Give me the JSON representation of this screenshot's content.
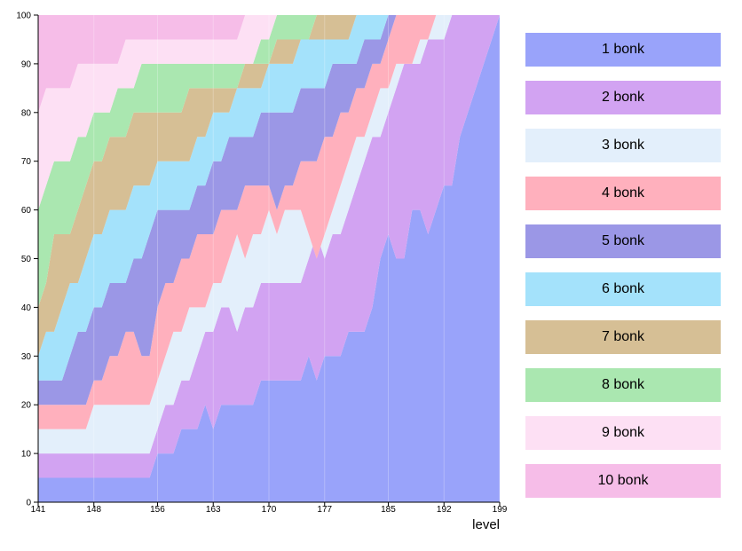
{
  "chart_data": {
    "type": "area",
    "stacking": "percent",
    "xlabel": "level",
    "ylabel": "",
    "ylim": [
      0,
      100
    ],
    "xlim": [
      141,
      199
    ],
    "x_ticks": [
      141,
      148,
      156,
      163,
      170,
      177,
      185,
      192,
      199
    ],
    "y_ticks": [
      0,
      10,
      20,
      30,
      40,
      50,
      60,
      70,
      80,
      90,
      100
    ],
    "x": [
      141,
      142,
      143,
      144,
      145,
      146,
      147,
      148,
      149,
      150,
      151,
      152,
      153,
      154,
      155,
      156,
      157,
      158,
      159,
      160,
      161,
      162,
      163,
      164,
      165,
      166,
      167,
      168,
      169,
      170,
      171,
      172,
      173,
      174,
      175,
      176,
      177,
      178,
      179,
      180,
      181,
      182,
      183,
      184,
      185,
      186,
      187,
      188,
      189,
      190,
      191,
      192,
      193,
      194,
      195,
      196,
      197,
      198,
      199
    ],
    "cumulative_boundaries": [
      {
        "upper_of": "1 bonk",
        "values": [
          5,
          5,
          5,
          5,
          5,
          5,
          5,
          5,
          5,
          5,
          5,
          5,
          5,
          5,
          5,
          10,
          10,
          10,
          15,
          15,
          15,
          20,
          15,
          20,
          20,
          20,
          20,
          20,
          25,
          25,
          25,
          25,
          25,
          25,
          30,
          25,
          30,
          30,
          30,
          35,
          35,
          35,
          40,
          50,
          55,
          50,
          50,
          60,
          60,
          55,
          60,
          65,
          65,
          75,
          80,
          85,
          90,
          95,
          100
        ]
      },
      {
        "upper_of": "2 bonk",
        "values": [
          10,
          10,
          10,
          10,
          10,
          10,
          10,
          10,
          10,
          10,
          10,
          10,
          10,
          10,
          10,
          15,
          20,
          20,
          25,
          25,
          30,
          35,
          35,
          40,
          40,
          35,
          40,
          40,
          45,
          45,
          45,
          45,
          45,
          45,
          50,
          55,
          50,
          55,
          55,
          60,
          65,
          70,
          75,
          75,
          80,
          85,
          90,
          90,
          90,
          95,
          95,
          95,
          100,
          100,
          100,
          100,
          100,
          100,
          100
        ]
      },
      {
        "upper_of": "3 bonk",
        "values": [
          15,
          15,
          15,
          15,
          15,
          15,
          15,
          20,
          20,
          20,
          20,
          20,
          20,
          20,
          20,
          25,
          30,
          35,
          35,
          40,
          40,
          40,
          45,
          45,
          50,
          55,
          50,
          55,
          55,
          60,
          55,
          60,
          60,
          60,
          55,
          50,
          55,
          60,
          65,
          70,
          75,
          75,
          80,
          85,
          85,
          90,
          90,
          90,
          95,
          95,
          100,
          100,
          100,
          100,
          100,
          100,
          100,
          100,
          100
        ]
      },
      {
        "upper_of": "4 bonk",
        "values": [
          20,
          20,
          20,
          20,
          20,
          20,
          20,
          25,
          25,
          30,
          30,
          35,
          35,
          30,
          30,
          40,
          45,
          45,
          50,
          50,
          55,
          55,
          55,
          60,
          60,
          60,
          65,
          65,
          65,
          65,
          60,
          65,
          65,
          70,
          70,
          70,
          75,
          75,
          80,
          80,
          85,
          85,
          90,
          90,
          95,
          100,
          100,
          100,
          100,
          100,
          100,
          100,
          100,
          100,
          100,
          100,
          100,
          100,
          100
        ]
      },
      {
        "upper_of": "5 bonk",
        "values": [
          25,
          25,
          25,
          25,
          30,
          35,
          35,
          40,
          40,
          45,
          45,
          45,
          50,
          50,
          55,
          60,
          60,
          60,
          60,
          60,
          65,
          65,
          70,
          70,
          75,
          75,
          75,
          75,
          80,
          80,
          80,
          80,
          80,
          85,
          85,
          85,
          85,
          90,
          90,
          90,
          90,
          95,
          95,
          95,
          100,
          100,
          100,
          100,
          100,
          100,
          100,
          100,
          100,
          100,
          100,
          100,
          100,
          100,
          100
        ]
      },
      {
        "upper_of": "6 bonk",
        "values": [
          30,
          35,
          35,
          40,
          45,
          45,
          50,
          55,
          55,
          60,
          60,
          60,
          65,
          65,
          65,
          70,
          70,
          70,
          70,
          70,
          75,
          75,
          80,
          80,
          80,
          85,
          85,
          85,
          85,
          90,
          90,
          90,
          90,
          95,
          95,
          95,
          95,
          95,
          95,
          95,
          100,
          100,
          100,
          100,
          100,
          100,
          100,
          100,
          100,
          100,
          100,
          100,
          100,
          100,
          100,
          100,
          100,
          100,
          100
        ]
      },
      {
        "upper_of": "7 bonk",
        "values": [
          40,
          45,
          55,
          55,
          55,
          60,
          65,
          70,
          70,
          75,
          75,
          75,
          80,
          80,
          80,
          80,
          80,
          80,
          80,
          85,
          85,
          85,
          85,
          85,
          85,
          85,
          90,
          90,
          90,
          90,
          95,
          95,
          95,
          95,
          95,
          100,
          100,
          100,
          100,
          100,
          100,
          100,
          100,
          100,
          100,
          100,
          100,
          100,
          100,
          100,
          100,
          100,
          100,
          100,
          100,
          100,
          100,
          100,
          100
        ]
      },
      {
        "upper_of": "8 bonk",
        "values": [
          60,
          65,
          70,
          70,
          70,
          75,
          75,
          80,
          80,
          80,
          85,
          85,
          85,
          90,
          90,
          90,
          90,
          90,
          90,
          90,
          90,
          90,
          90,
          90,
          90,
          90,
          90,
          90,
          95,
          95,
          100,
          100,
          100,
          100,
          100,
          100,
          100,
          100,
          100,
          100,
          100,
          100,
          100,
          100,
          100,
          100,
          100,
          100,
          100,
          100,
          100,
          100,
          100,
          100,
          100,
          100,
          100,
          100,
          100
        ]
      },
      {
        "upper_of": "9 bonk",
        "values": [
          80,
          85,
          85,
          85,
          85,
          90,
          90,
          90,
          90,
          90,
          90,
          95,
          95,
          95,
          95,
          95,
          95,
          95,
          95,
          95,
          95,
          95,
          95,
          95,
          95,
          95,
          100,
          100,
          100,
          100,
          100,
          100,
          100,
          100,
          100,
          100,
          100,
          100,
          100,
          100,
          100,
          100,
          100,
          100,
          100,
          100,
          100,
          100,
          100,
          100,
          100,
          100,
          100,
          100,
          100,
          100,
          100,
          100,
          100
        ]
      },
      {
        "upper_of": "10 bonk",
        "values": [
          100,
          100,
          100,
          100,
          100,
          100,
          100,
          100,
          100,
          100,
          100,
          100,
          100,
          100,
          100,
          100,
          100,
          100,
          100,
          100,
          100,
          100,
          100,
          100,
          100,
          100,
          100,
          100,
          100,
          100,
          100,
          100,
          100,
          100,
          100,
          100,
          100,
          100,
          100,
          100,
          100,
          100,
          100,
          100,
          100,
          100,
          100,
          100,
          100,
          100,
          100,
          100,
          100,
          100,
          100,
          100,
          100,
          100,
          100
        ]
      }
    ],
    "series": [
      {
        "name": "1 bonk",
        "color": "#99a3fa"
      },
      {
        "name": "2 bonk",
        "color": "#d2a3f2"
      },
      {
        "name": "3 bonk",
        "color": "#e3effb"
      },
      {
        "name": "4 bonk",
        "color": "#ffb0bd"
      },
      {
        "name": "5 bonk",
        "color": "#9b97e6"
      },
      {
        "name": "6 bonk",
        "color": "#a4e2fb"
      },
      {
        "name": "7 bonk",
        "color": "#d6bf95"
      },
      {
        "name": "8 bonk",
        "color": "#aae7b0"
      },
      {
        "name": "9 bonk",
        "color": "#fde0f4"
      },
      {
        "name": "10 bonk",
        "color": "#f6bde8"
      }
    ]
  }
}
